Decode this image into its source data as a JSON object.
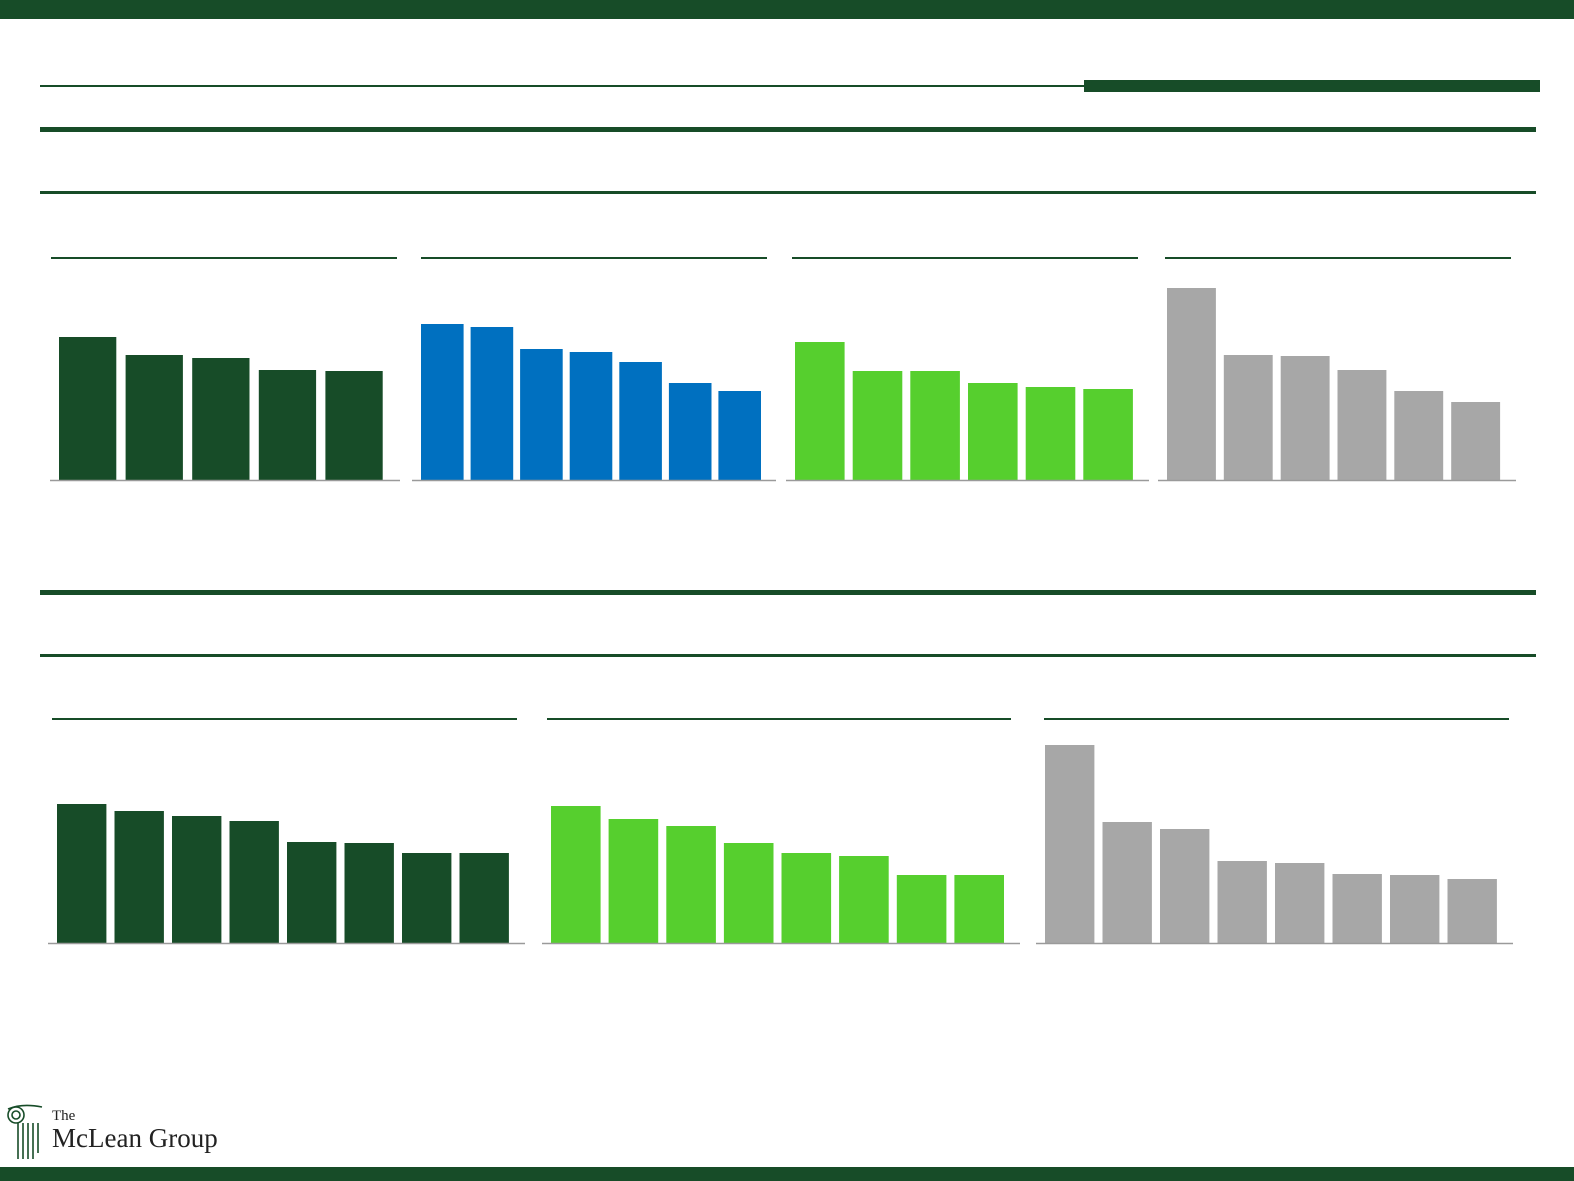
{
  "colors": {
    "dark_green": "#174c28",
    "blue": "#0070c0",
    "light_green": "#56cf2e",
    "gray": "#a7a7a7",
    "axis": "#9a9a9a"
  },
  "logo": {
    "the": "The",
    "name": "McLean Group",
    "icon": "ionic-column-icon"
  },
  "chart_data": [
    {
      "type": "bar",
      "categories": [
        "",
        "",
        "",
        "",
        ""
      ],
      "series": [
        {
          "values": [
            143,
            125,
            122,
            110,
            109
          ]
        }
      ],
      "ylim": [
        0,
        200
      ],
      "color": "dark_green",
      "grid": false
    },
    {
      "type": "bar",
      "categories": [
        "",
        "",
        "",
        "",
        "",
        "",
        ""
      ],
      "series": [
        {
          "values": [
            156,
            153,
            131,
            128,
            118,
            97,
            89
          ]
        }
      ],
      "ylim": [
        0,
        200
      ],
      "color": "blue",
      "grid": false
    },
    {
      "type": "bar",
      "categories": [
        "",
        "",
        "",
        "",
        "",
        ""
      ],
      "series": [
        {
          "values": [
            138,
            109,
            109,
            97,
            93,
            91
          ]
        }
      ],
      "ylim": [
        0,
        200
      ],
      "color": "light_green",
      "grid": false
    },
    {
      "type": "bar",
      "categories": [
        "",
        "",
        "",
        "",
        "",
        ""
      ],
      "series": [
        {
          "values": [
            192,
            125,
            124,
            110,
            89,
            78
          ]
        }
      ],
      "ylim": [
        0,
        200
      ],
      "color": "gray",
      "grid": false
    },
    {
      "type": "bar",
      "categories": [
        "",
        "",
        "",
        "",
        "",
        "",
        "",
        ""
      ],
      "series": [
        {
          "values": [
            139,
            132,
            127,
            122,
            101,
            100,
            90,
            90
          ]
        }
      ],
      "ylim": [
        0,
        200
      ],
      "color": "dark_green",
      "grid": false
    },
    {
      "type": "bar",
      "categories": [
        "",
        "",
        "",
        "",
        "",
        "",
        "",
        ""
      ],
      "series": [
        {
          "values": [
            137,
            124,
            117,
            100,
            90,
            87,
            68,
            68
          ]
        }
      ],
      "ylim": [
        0,
        200
      ],
      "color": "light_green",
      "grid": false
    },
    {
      "type": "bar",
      "categories": [
        "",
        "",
        "",
        "",
        "",
        "",
        "",
        ""
      ],
      "series": [
        {
          "values": [
            198,
            121,
            114,
            82,
            80,
            69,
            68,
            64
          ]
        }
      ],
      "ylim": [
        0,
        200
      ],
      "color": "gray",
      "grid": false
    }
  ]
}
